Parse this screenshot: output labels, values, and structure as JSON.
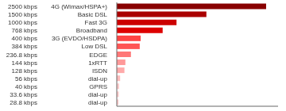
{
  "chart_data": {
    "type": "bar",
    "orientation": "horizontal",
    "categories": [
      [
        "28.8 kbps",
        "dial-up"
      ],
      [
        "33.6 kbps",
        "dial-up"
      ],
      [
        "40 kbps",
        "GPRS"
      ],
      [
        "56 kbps",
        "dial-up"
      ],
      [
        "128 kbps",
        "ISDN"
      ],
      [
        "144 kbps",
        "1xRTT"
      ],
      [
        "236.8 kbps",
        "EDGE"
      ],
      [
        "384 kbps",
        "Low DSL"
      ],
      [
        "400 kbps",
        "3G (EVDO/HSDPA)"
      ],
      [
        "768 kbps",
        "Broadband"
      ],
      [
        "1000 kbps",
        "Fast 3G"
      ],
      [
        "1500 kbps",
        "Basic DSL"
      ],
      [
        "2500 kbps",
        "4G (Wimax/HSPA+)"
      ]
    ],
    "values": [
      28.8,
      33.6,
      40,
      56,
      128,
      144,
      236.8,
      384,
      400,
      768,
      1000,
      1500,
      2500
    ],
    "colors": [
      "#ffcccc",
      "#ffcccc",
      "#ffcccc",
      "#ffbbbb",
      "#ffaaaa",
      "#ff9999",
      "#ff7777",
      "#ff5555",
      "#ff4444",
      "#dd0000",
      "#cc0000",
      "#aa0000",
      "#880000"
    ],
    "xlim": [
      0,
      2700
    ],
    "tick_labels": "y"
  }
}
